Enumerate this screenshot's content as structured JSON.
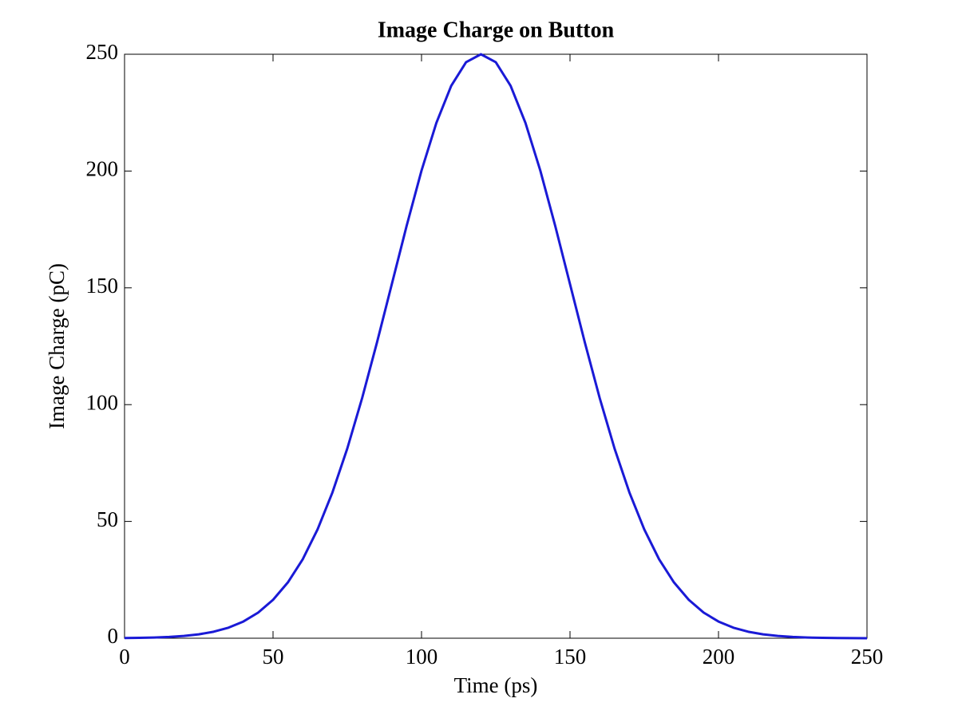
{
  "chart_data": {
    "type": "line",
    "title": "Image Charge on Button",
    "xlabel": "Time (ps)",
    "ylabel": "Image Charge (pC)",
    "x": [
      0,
      5,
      10,
      15,
      20,
      25,
      30,
      35,
      40,
      45,
      50,
      55,
      60,
      65,
      70,
      75,
      80,
      85,
      90,
      95,
      100,
      105,
      110,
      115,
      120,
      125,
      130,
      135,
      140,
      145,
      150,
      155,
      160,
      165,
      170,
      175,
      180,
      185,
      190,
      195,
      200,
      205,
      210,
      215,
      220,
      225,
      230,
      235,
      240,
      245,
      250
    ],
    "values": [
      0.08,
      0.16,
      0.3,
      0.55,
      0.97,
      1.66,
      2.78,
      4.52,
      7.14,
      10.98,
      16.43,
      23.9,
      33.8,
      46.6,
      62.4,
      81.2,
      102.8,
      126.6,
      151.6,
      176.6,
      200.2,
      220.6,
      236.5,
      246.6,
      250,
      246.6,
      236.5,
      220.6,
      200.2,
      176.6,
      151.6,
      126.6,
      102.8,
      81.2,
      62.4,
      46.6,
      33.8,
      23.9,
      16.43,
      10.98,
      7.14,
      4.52,
      2.78,
      1.66,
      0.97,
      0.55,
      0.3,
      0.16,
      0.08,
      0.04,
      0.02
    ],
    "color": "#1a1ad6",
    "xlim": [
      0,
      250
    ],
    "xticks": [
      0,
      50,
      100,
      150,
      200,
      250
    ],
    "ylim": [
      0,
      250
    ],
    "yticks": [
      0,
      50,
      100,
      150,
      200,
      250
    ],
    "grid": false
  }
}
